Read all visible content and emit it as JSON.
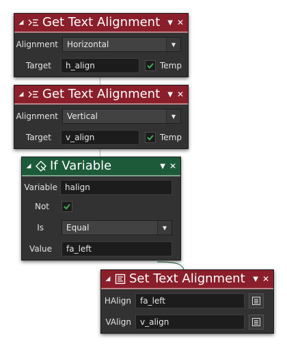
{
  "nodes": {
    "get_align_1": {
      "title": "Get Text Alignment",
      "alignment_label": "Alignment",
      "alignment_value": "Horizontal",
      "target_label": "Target",
      "target_value": "h_align",
      "temp_label": "Temp",
      "temp_checked": true
    },
    "get_align_2": {
      "title": "Get Text Alignment",
      "alignment_label": "Alignment",
      "alignment_value": "Vertical",
      "target_label": "Target",
      "target_value": "v_align",
      "temp_label": "Temp",
      "temp_checked": true
    },
    "if_variable": {
      "title": "If Variable",
      "variable_label": "Variable",
      "variable_value": "halign",
      "not_label": "Not",
      "not_checked": true,
      "is_label": "Is",
      "is_value": "Equal",
      "value_label": "Value",
      "value_value": "fa_left"
    },
    "set_align": {
      "title": "Set Text Alignment",
      "halign_label": "HAlign",
      "halign_value": "fa_left",
      "valign_label": "VAlign",
      "valign_value": "v_align"
    }
  },
  "colors": {
    "header_red": "#8a1f2b",
    "header_green": "#1d5a3a",
    "check_green": "#3fae5c",
    "panel": "#323232"
  },
  "icons": {
    "collapse": "triangle-down-icon",
    "get_alignment": "text-align-icon",
    "if_variable": "if-variable-icon",
    "set_alignment": "set-text-icon",
    "menu": "chevron-down-icon",
    "close": "close-icon",
    "checkmark": "checkmark-icon",
    "variable_picker": "variable-picker-icon"
  }
}
